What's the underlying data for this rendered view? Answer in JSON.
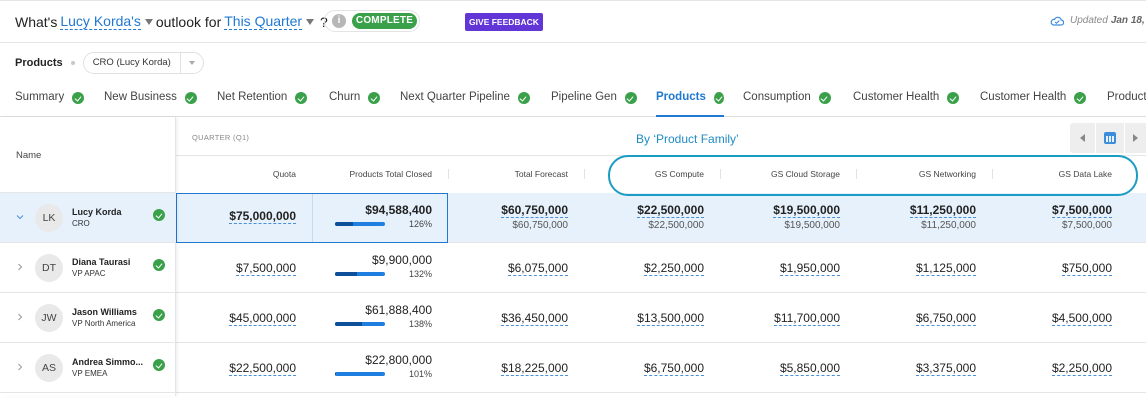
{
  "header": {
    "prefix": "What's",
    "person_link": "Lucy Korda's",
    "middle": "outlook for",
    "period_link": "This Quarter",
    "suffix": "?",
    "info_icon": "info-icon",
    "status": "COMPLETE",
    "feedback_button": "GIVE FEEDBACK",
    "updated_label": "Updated",
    "updated_date": "Jan 18,",
    "cloud_icon": "cloud-check-icon"
  },
  "breadcrumb": {
    "label": "Products",
    "role_select": "CRO (Lucy Korda)"
  },
  "tabs": [
    {
      "label": "Summary",
      "complete": true
    },
    {
      "label": "New Business",
      "complete": true
    },
    {
      "label": "Net Retention",
      "complete": true
    },
    {
      "label": "Churn",
      "complete": true
    },
    {
      "label": "Next Quarter Pipeline",
      "complete": true
    },
    {
      "label": "Pipeline Gen",
      "complete": true
    },
    {
      "label": "Products",
      "complete": true,
      "active": true
    },
    {
      "label": "Consumption",
      "complete": true
    },
    {
      "label": "Customer Health",
      "complete": true
    },
    {
      "label": "Customer Health",
      "complete": true
    },
    {
      "label": "Product",
      "complete": false
    }
  ],
  "table": {
    "name_header": "Name",
    "group_label": "QUARTER (Q1)",
    "group_title": "By ‘Product Family’",
    "columns": [
      "Quota",
      "Products Total Closed",
      "Total Forecast",
      "GS Compute",
      "GS Cloud Storage",
      "GS Networking",
      "GS Data Lake"
    ],
    "rows": [
      {
        "initials": "LK",
        "name": "Lucy Korda",
        "title": "CRO",
        "expanded": true,
        "selected": true,
        "complete": true,
        "quota": "$75,000,000",
        "closed": "$94,588,400",
        "attainment_pct": "126%",
        "attainment": 1.26,
        "forecast": "$60,750,000",
        "forecast_sub": "$60,750,000",
        "compute": "$22,500,000",
        "compute_sub": "$22,500,000",
        "storage": "$19,500,000",
        "storage_sub": "$19,500,000",
        "networking": "$11,250,000",
        "networking_sub": "$11,250,000",
        "datalake": "$7,500,000",
        "datalake_sub": "$7,500,000"
      },
      {
        "initials": "DT",
        "name": "Diana Taurasi",
        "title": "VP APAC",
        "expanded": false,
        "complete": true,
        "quota": "$7,500,000",
        "closed": "$9,900,000",
        "attainment_pct": "132%",
        "attainment": 1.32,
        "forecast": "$6,075,000",
        "compute": "$2,250,000",
        "storage": "$1,950,000",
        "networking": "$1,125,000",
        "datalake": "$750,000"
      },
      {
        "initials": "JW",
        "name": "Jason Williams",
        "title": "VP North America",
        "expanded": false,
        "complete": true,
        "quota": "$45,000,000",
        "closed": "$61,888,400",
        "attainment_pct": "138%",
        "attainment": 1.38,
        "forecast": "$36,450,000",
        "compute": "$13,500,000",
        "storage": "$11,700,000",
        "networking": "$6,750,000",
        "datalake": "$4,500,000"
      },
      {
        "initials": "AS",
        "name": "Andrea Simmo...",
        "title": "VP EMEA",
        "expanded": false,
        "complete": true,
        "quota": "$22,500,000",
        "closed": "$22,800,000",
        "attainment_pct": "101%",
        "attainment": 1.01,
        "forecast": "$18,225,000",
        "compute": "$6,750,000",
        "storage": "$5,850,000",
        "networking": "$3,375,000",
        "datalake": "$2,250,000"
      }
    ]
  },
  "colors": {
    "accent": "#1f78d1",
    "complete_green": "#3aa14a",
    "feedback_purple": "#6236d6",
    "highlight_teal": "#1b9cc3",
    "selected_row": "#e6f1fc"
  }
}
